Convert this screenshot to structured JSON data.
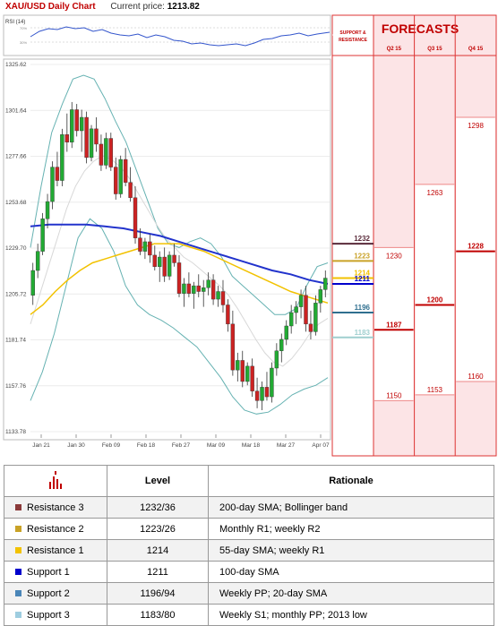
{
  "header": {
    "title": "XAU/USD Daily Chart",
    "price_label": "Current price:",
    "price_value": "1213.82"
  },
  "rsi": {
    "label": "RSI (14)",
    "levels": [
      "70%",
      "30%"
    ]
  },
  "chart_data": {
    "type": "candlestick",
    "y_ticks": [
      1325.62,
      1301.64,
      1277.66,
      1253.68,
      1229.7,
      1205.72,
      1181.74,
      1157.76,
      1133.78
    ],
    "ylim": [
      1133.78,
      1325.62
    ],
    "x_ticks": [
      "Jan 21",
      "Jan 30",
      "Feb 09",
      "Feb 18",
      "Feb 27",
      "Mar 09",
      "Mar 18",
      "Mar 27",
      "Apr 07"
    ],
    "ohlc": [
      [
        1205,
        1222,
        1200,
        1218
      ],
      [
        1218,
        1232,
        1214,
        1228
      ],
      [
        1228,
        1248,
        1226,
        1245
      ],
      [
        1245,
        1258,
        1240,
        1254
      ],
      [
        1254,
        1275,
        1250,
        1272
      ],
      [
        1272,
        1280,
        1262,
        1265
      ],
      [
        1265,
        1292,
        1262,
        1289
      ],
      [
        1289,
        1300,
        1280,
        1285
      ],
      [
        1285,
        1306,
        1282,
        1302
      ],
      [
        1302,
        1305,
        1288,
        1291
      ],
      [
        1291,
        1302,
        1280,
        1298
      ],
      [
        1298,
        1301,
        1274,
        1277
      ],
      [
        1277,
        1294,
        1275,
        1292
      ],
      [
        1292,
        1298,
        1280,
        1284
      ],
      [
        1284,
        1289,
        1270,
        1273
      ],
      [
        1273,
        1290,
        1271,
        1287
      ],
      [
        1287,
        1290,
        1270,
        1272
      ],
      [
        1272,
        1277,
        1255,
        1258
      ],
      [
        1258,
        1278,
        1256,
        1276
      ],
      [
        1276,
        1282,
        1262,
        1264
      ],
      [
        1264,
        1272,
        1254,
        1256
      ],
      [
        1256,
        1262,
        1232,
        1235
      ],
      [
        1235,
        1240,
        1226,
        1228
      ],
      [
        1228,
        1235,
        1224,
        1233
      ],
      [
        1233,
        1237,
        1222,
        1226
      ],
      [
        1226,
        1231,
        1218,
        1220
      ],
      [
        1220,
        1228,
        1212,
        1225
      ],
      [
        1225,
        1230,
        1212,
        1215
      ],
      [
        1215,
        1228,
        1213,
        1226
      ],
      [
        1226,
        1232,
        1220,
        1222
      ],
      [
        1222,
        1226,
        1204,
        1206
      ],
      [
        1206,
        1214,
        1199,
        1211
      ],
      [
        1211,
        1217,
        1204,
        1206
      ],
      [
        1206,
        1212,
        1198,
        1210
      ],
      [
        1210,
        1216,
        1204,
        1207
      ],
      [
        1207,
        1213,
        1199,
        1209
      ],
      [
        1209,
        1217,
        1205,
        1213
      ],
      [
        1213,
        1216,
        1200,
        1203
      ],
      [
        1203,
        1210,
        1199,
        1207
      ],
      [
        1207,
        1213,
        1196,
        1200
      ],
      [
        1200,
        1203,
        1186,
        1190
      ],
      [
        1190,
        1197,
        1163,
        1166
      ],
      [
        1166,
        1175,
        1160,
        1171
      ],
      [
        1171,
        1176,
        1157,
        1160
      ],
      [
        1160,
        1170,
        1158,
        1168
      ],
      [
        1168,
        1172,
        1152,
        1155
      ],
      [
        1155,
        1162,
        1146,
        1150
      ],
      [
        1150,
        1160,
        1145,
        1157
      ],
      [
        1157,
        1165,
        1150,
        1152
      ],
      [
        1152,
        1170,
        1149,
        1167
      ],
      [
        1167,
        1180,
        1163,
        1176
      ],
      [
        1176,
        1185,
        1170,
        1182
      ],
      [
        1182,
        1192,
        1179,
        1189
      ],
      [
        1189,
        1200,
        1185,
        1196
      ],
      [
        1196,
        1202,
        1190,
        1199
      ],
      [
        1199,
        1208,
        1193,
        1205
      ],
      [
        1205,
        1210,
        1186,
        1190
      ],
      [
        1190,
        1197,
        1182,
        1186
      ],
      [
        1186,
        1205,
        1184,
        1201
      ],
      [
        1201,
        1210,
        1196,
        1208
      ],
      [
        1208,
        1218,
        1204,
        1214
      ]
    ],
    "sma20": [
      1190,
      1205,
      1220,
      1235,
      1250,
      1262,
      1270,
      1275,
      1278,
      1276,
      1272,
      1266,
      1258,
      1250,
      1242,
      1235,
      1230,
      1225,
      1222,
      1218,
      1214,
      1210,
      1205,
      1198,
      1190,
      1182,
      1175,
      1170,
      1168,
      1172,
      1178,
      1185,
      1190,
      1193
    ],
    "sma55": [
      1195,
      1200,
      1207,
      1213,
      1218,
      1222,
      1224,
      1226,
      1228,
      1230,
      1232,
      1232,
      1232,
      1230,
      1228,
      1225,
      1222,
      1219,
      1216,
      1213,
      1210,
      1207,
      1205,
      1203,
      1201
    ],
    "sma100": [
      1241,
      1242,
      1242,
      1242,
      1241,
      1240,
      1238,
      1236,
      1233,
      1230,
      1227,
      1224,
      1221,
      1218,
      1216,
      1213,
      1211
    ],
    "bb_upper": [
      1230,
      1262,
      1290,
      1305,
      1318,
      1320,
      1318,
      1308,
      1296,
      1285,
      1270,
      1255,
      1240,
      1232,
      1230,
      1233,
      1235,
      1232,
      1225,
      1215,
      1210,
      1205,
      1200,
      1195,
      1195,
      1198,
      1210,
      1220,
      1222
    ],
    "bb_lower": [
      1150,
      1165,
      1185,
      1210,
      1235,
      1245,
      1240,
      1228,
      1210,
      1200,
      1195,
      1192,
      1188,
      1183,
      1178,
      1170,
      1162,
      1152,
      1145,
      1143,
      1144,
      1148,
      1153,
      1156,
      1158,
      1162
    ],
    "levels": [
      {
        "label": "1232",
        "value": 1232,
        "color": "#5a2a3a"
      },
      {
        "label": "1223",
        "value": 1223,
        "color": "#c9a227"
      },
      {
        "label": "1214",
        "value": 1214,
        "color": "#f2c200"
      },
      {
        "label": "1211",
        "value": 1211,
        "color": "#0000cc"
      },
      {
        "label": "1196",
        "value": 1196,
        "color": "#2f6f8f"
      },
      {
        "label": "1183",
        "value": 1183,
        "color": "#9fcfcf"
      }
    ]
  },
  "forecasts": {
    "title": "FORECASTS",
    "support_resistance_label": "SUPPORT & RESISTANCE",
    "quarters": [
      {
        "label": "Q2 15",
        "high": 1230,
        "mid": 1187,
        "low": 1150,
        "high_label": "1230",
        "mid_label": "1187",
        "low_label": "1150"
      },
      {
        "label": "Q3 15",
        "high": 1263,
        "mid": 1200,
        "low": 1153,
        "high_label": "1263",
        "mid_label": "1200",
        "low_label": "1153"
      },
      {
        "label": "Q4 15",
        "high": 1298,
        "mid": 1228,
        "low": 1160,
        "high_label": "1298",
        "mid_label": "1228",
        "low_label": "1160"
      }
    ]
  },
  "table": {
    "headers": {
      "level": "Level",
      "rationale": "Rationale"
    },
    "rows": [
      {
        "name": "Resistance 3",
        "level": "1232/36",
        "rationale": "200-day SMA; Bollinger band",
        "color": "#8b3a3a"
      },
      {
        "name": "Resistance 2",
        "level": "1223/26",
        "rationale": "Monthly R1; weekly R2",
        "color": "#c9a227"
      },
      {
        "name": "Resistance 1",
        "level": "1214",
        "rationale": "55-day SMA; weekly R1",
        "color": "#f2c200"
      },
      {
        "name": "Support 1",
        "level": "1211",
        "rationale": "100-day SMA",
        "color": "#0000cc"
      },
      {
        "name": "Support 2",
        "level": "1196/94",
        "rationale": "Weekly PP; 20-day SMA",
        "color": "#4a86b8"
      },
      {
        "name": "Support 3",
        "level": "1183/80",
        "rationale": "Weekly S1; monthly PP; 2013 low",
        "color": "#9ecde0"
      }
    ]
  }
}
